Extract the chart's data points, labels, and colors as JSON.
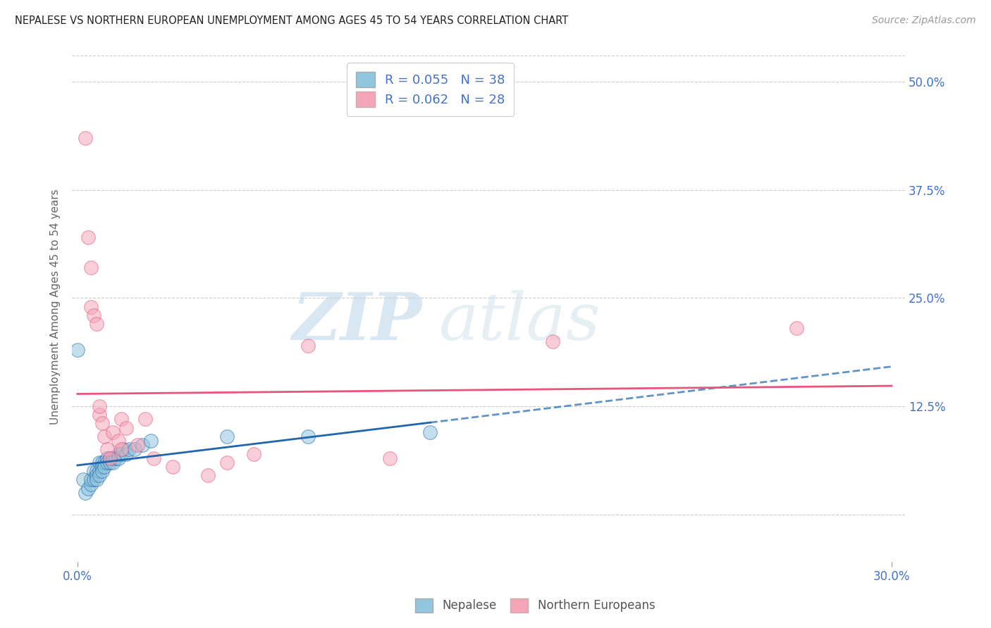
{
  "title": "NEPALESE VS NORTHERN EUROPEAN UNEMPLOYMENT AMONG AGES 45 TO 54 YEARS CORRELATION CHART",
  "source": "Source: ZipAtlas.com",
  "ylabel": "Unemployment Among Ages 45 to 54 years",
  "legend_label1": "Nepalese",
  "legend_label2": "Northern Europeans",
  "R1": 0.055,
  "N1": 38,
  "R2": 0.062,
  "N2": 28,
  "xlim": [
    -0.002,
    0.305
  ],
  "ylim": [
    -0.055,
    0.535
  ],
  "yticks": [
    0.0,
    0.125,
    0.25,
    0.375,
    0.5
  ],
  "ytick_labels": [
    "",
    "12.5%",
    "25.0%",
    "37.5%",
    "50.0%"
  ],
  "xticks": [
    0.0,
    0.3
  ],
  "xtick_labels": [
    "0.0%",
    "30.0%"
  ],
  "color_blue": "#92c5de",
  "color_pink": "#f4a6b8",
  "color_blue_line": "#2166ac",
  "color_pink_line": "#e8547a",
  "watermark_zip": "ZIP",
  "watermark_atlas": "atlas",
  "nepalese_x": [
    0.0,
    0.002,
    0.003,
    0.004,
    0.005,
    0.005,
    0.006,
    0.006,
    0.007,
    0.007,
    0.007,
    0.008,
    0.008,
    0.008,
    0.009,
    0.009,
    0.009,
    0.01,
    0.01,
    0.011,
    0.011,
    0.012,
    0.012,
    0.013,
    0.013,
    0.014,
    0.015,
    0.015,
    0.016,
    0.017,
    0.018,
    0.019,
    0.021,
    0.024,
    0.027,
    0.055,
    0.085,
    0.13
  ],
  "nepalese_y": [
    0.19,
    0.04,
    0.025,
    0.03,
    0.035,
    0.04,
    0.05,
    0.04,
    0.05,
    0.045,
    0.04,
    0.06,
    0.05,
    0.045,
    0.06,
    0.055,
    0.05,
    0.06,
    0.055,
    0.065,
    0.06,
    0.065,
    0.06,
    0.065,
    0.06,
    0.065,
    0.07,
    0.065,
    0.07,
    0.075,
    0.07,
    0.075,
    0.075,
    0.08,
    0.085,
    0.09,
    0.09,
    0.095
  ],
  "northern_x": [
    0.003,
    0.004,
    0.005,
    0.005,
    0.006,
    0.007,
    0.008,
    0.008,
    0.009,
    0.01,
    0.011,
    0.012,
    0.013,
    0.015,
    0.016,
    0.016,
    0.018,
    0.022,
    0.025,
    0.028,
    0.035,
    0.048,
    0.055,
    0.065,
    0.085,
    0.115,
    0.175,
    0.265
  ],
  "northern_y": [
    0.435,
    0.32,
    0.285,
    0.24,
    0.23,
    0.22,
    0.115,
    0.125,
    0.105,
    0.09,
    0.075,
    0.065,
    0.095,
    0.085,
    0.075,
    0.11,
    0.1,
    0.08,
    0.11,
    0.065,
    0.055,
    0.045,
    0.06,
    0.07,
    0.195,
    0.065,
    0.2,
    0.215
  ]
}
